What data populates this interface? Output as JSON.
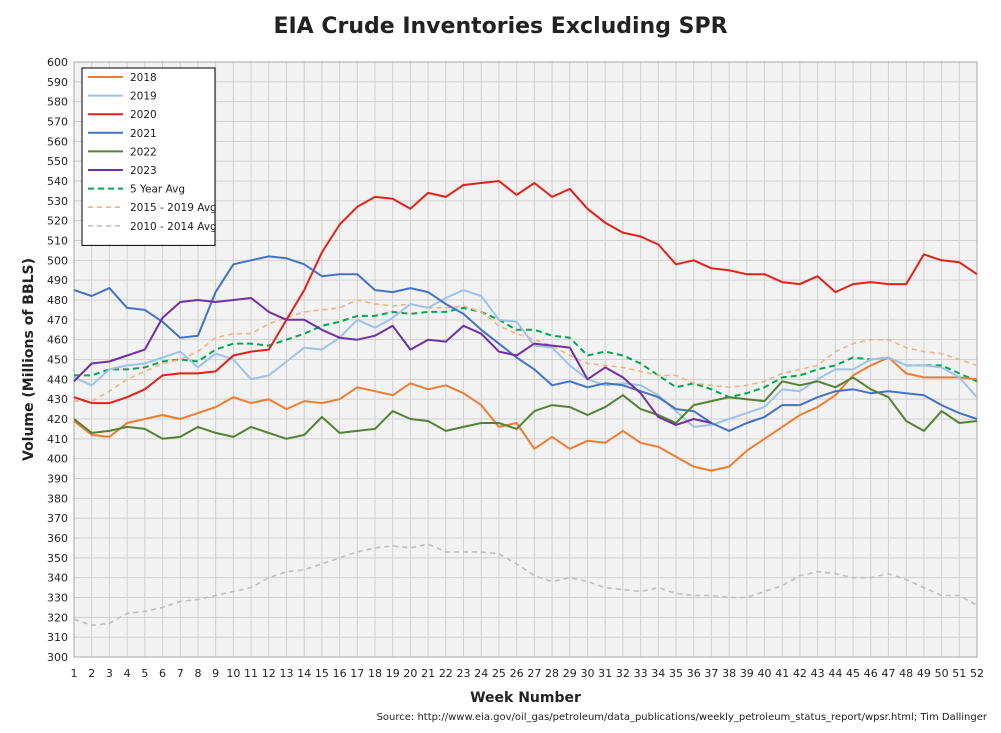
{
  "title": "EIA Crude Inventories Excluding SPR",
  "source": "Source: http://www.eia.gov/oil_gas/petroleum/data_publications/weekly_petroleum_status_report/wpsr.html; Tim Dallinger",
  "chart_data": {
    "type": "line",
    "title": "EIA Crude Inventories Excluding SPR",
    "xlabel": "Week Number",
    "ylabel": "Volume (Millions of BBLS)",
    "ylim": [
      300,
      600
    ],
    "ytick_step": 10,
    "x": [
      1,
      2,
      3,
      4,
      5,
      6,
      7,
      8,
      9,
      10,
      11,
      12,
      13,
      14,
      15,
      16,
      17,
      18,
      19,
      20,
      21,
      22,
      23,
      24,
      25,
      26,
      27,
      28,
      29,
      30,
      31,
      32,
      33,
      34,
      35,
      36,
      37,
      38,
      39,
      40,
      41,
      42,
      43,
      44,
      45,
      46,
      47,
      48,
      49,
      50,
      51,
      52
    ],
    "grid": true,
    "legend_position": "top-left",
    "series": [
      {
        "name": "2018",
        "color": "#ED7D31",
        "dash": "solid",
        "values": [
          419,
          412,
          411,
          418,
          420,
          422,
          420,
          423,
          426,
          431,
          428,
          430,
          425,
          429,
          428,
          430,
          436,
          434,
          432,
          438,
          435,
          437,
          433,
          427,
          416,
          418,
          405,
          411,
          405,
          409,
          408,
          414,
          408,
          406,
          401,
          396,
          394,
          396,
          404,
          410,
          416,
          422,
          426,
          432,
          442,
          447,
          451,
          443,
          441,
          441,
          441,
          440
        ]
      },
      {
        "name": "2019",
        "color": "#9DC3E6",
        "dash": "solid",
        "values": [
          441,
          437,
          445,
          447,
          448,
          451,
          454,
          446,
          453,
          450,
          440,
          442,
          449,
          456,
          455,
          461,
          470,
          466,
          471,
          478,
          476,
          481,
          485,
          482,
          470,
          469,
          457,
          456,
          447,
          440,
          437,
          438,
          437,
          432,
          424,
          416,
          417,
          420,
          423,
          426,
          435,
          434,
          440,
          445,
          445,
          450,
          451,
          447,
          447,
          446,
          441,
          431
        ]
      },
      {
        "name": "2020",
        "color": "#E3201B",
        "dash": "solid",
        "values": [
          431,
          428,
          428,
          431,
          435,
          442,
          443,
          443,
          444,
          452,
          454,
          455,
          470,
          485,
          504,
          518,
          527,
          532,
          531,
          526,
          534,
          532,
          538,
          539,
          540,
          533,
          539,
          532,
          536,
          526,
          519,
          514,
          512,
          508,
          498,
          500,
          496,
          495,
          493,
          493,
          489,
          488,
          492,
          484,
          488,
          489,
          488,
          488,
          503,
          500,
          499,
          493
        ]
      },
      {
        "name": "2021",
        "color": "#4472C4",
        "dash": "solid",
        "values": [
          485,
          482,
          486,
          476,
          475,
          469,
          461,
          462,
          484,
          498,
          500,
          502,
          501,
          498,
          492,
          493,
          493,
          485,
          484,
          486,
          484,
          478,
          473,
          465,
          458,
          451,
          445,
          437,
          439,
          436,
          438,
          437,
          434,
          431,
          425,
          424,
          418,
          414,
          418,
          421,
          427,
          427,
          431,
          434,
          435,
          433,
          434,
          433,
          432,
          427,
          423,
          420
        ]
      },
      {
        "name": "2022",
        "color": "#548235",
        "dash": "solid",
        "values": [
          420,
          413,
          414,
          416,
          415,
          410,
          411,
          416,
          413,
          411,
          416,
          413,
          410,
          412,
          421,
          413,
          414,
          415,
          424,
          420,
          419,
          414,
          416,
          418,
          418,
          415,
          424,
          427,
          426,
          422,
          426,
          432,
          425,
          422,
          418,
          427,
          429,
          431,
          430,
          429,
          439,
          437,
          439,
          436,
          441,
          435,
          431,
          419,
          414,
          424,
          418,
          419
        ]
      },
      {
        "name": "2023",
        "color": "#7030A0",
        "dash": "solid",
        "values": [
          439,
          448,
          449,
          452,
          455,
          471,
          479,
          480,
          479,
          480,
          481,
          474,
          470,
          470,
          465,
          461,
          460,
          462,
          467,
          455,
          460,
          459,
          467,
          463,
          454,
          452,
          458,
          457,
          456,
          440,
          446,
          441,
          433,
          421,
          417,
          420,
          418,
          null,
          null,
          null,
          null,
          null,
          null,
          null,
          null,
          null,
          null,
          null,
          null,
          null,
          null,
          null
        ]
      },
      {
        "name": "5 Year Avg",
        "color": "#00A650",
        "dash": "dash-heavy",
        "values": [
          442,
          442,
          445,
          445,
          446,
          449,
          450,
          449,
          455,
          458,
          458,
          457,
          460,
          463,
          467,
          469,
          472,
          472,
          474,
          473,
          474,
          474,
          476,
          474,
          470,
          465,
          465,
          462,
          461,
          452,
          454,
          452,
          448,
          442,
          436,
          438,
          435,
          431,
          433,
          436,
          441,
          442,
          445,
          447,
          451,
          450,
          451,
          447,
          447,
          447,
          443,
          439
        ]
      },
      {
        "name": "2015 - 2019 Avg",
        "color": "#F4B183",
        "dash": "dash",
        "values": [
          429,
          429,
          434,
          440,
          444,
          448,
          450,
          454,
          461,
          463,
          463,
          468,
          471,
          474,
          475,
          476,
          480,
          478,
          477,
          478,
          476,
          476,
          477,
          474,
          467,
          463,
          460,
          457,
          452,
          448,
          447,
          446,
          444,
          442,
          442,
          438,
          437,
          436,
          437,
          439,
          443,
          445,
          447,
          454,
          458,
          460,
          460,
          456,
          454,
          453,
          450,
          447
        ]
      },
      {
        "name": "2010 - 2014 Avg",
        "color": "#BFBFBF",
        "dash": "dash",
        "values": [
          319,
          316,
          317,
          322,
          323,
          325,
          328,
          329,
          331,
          333,
          335,
          340,
          343,
          344,
          347,
          350,
          353,
          355,
          356,
          355,
          357,
          353,
          353,
          353,
          352,
          347,
          341,
          338,
          340,
          338,
          335,
          334,
          333,
          335,
          332,
          331,
          331,
          330,
          330,
          333,
          336,
          341,
          343,
          342,
          340,
          340,
          342,
          339,
          335,
          331,
          331,
          326
        ]
      }
    ]
  }
}
